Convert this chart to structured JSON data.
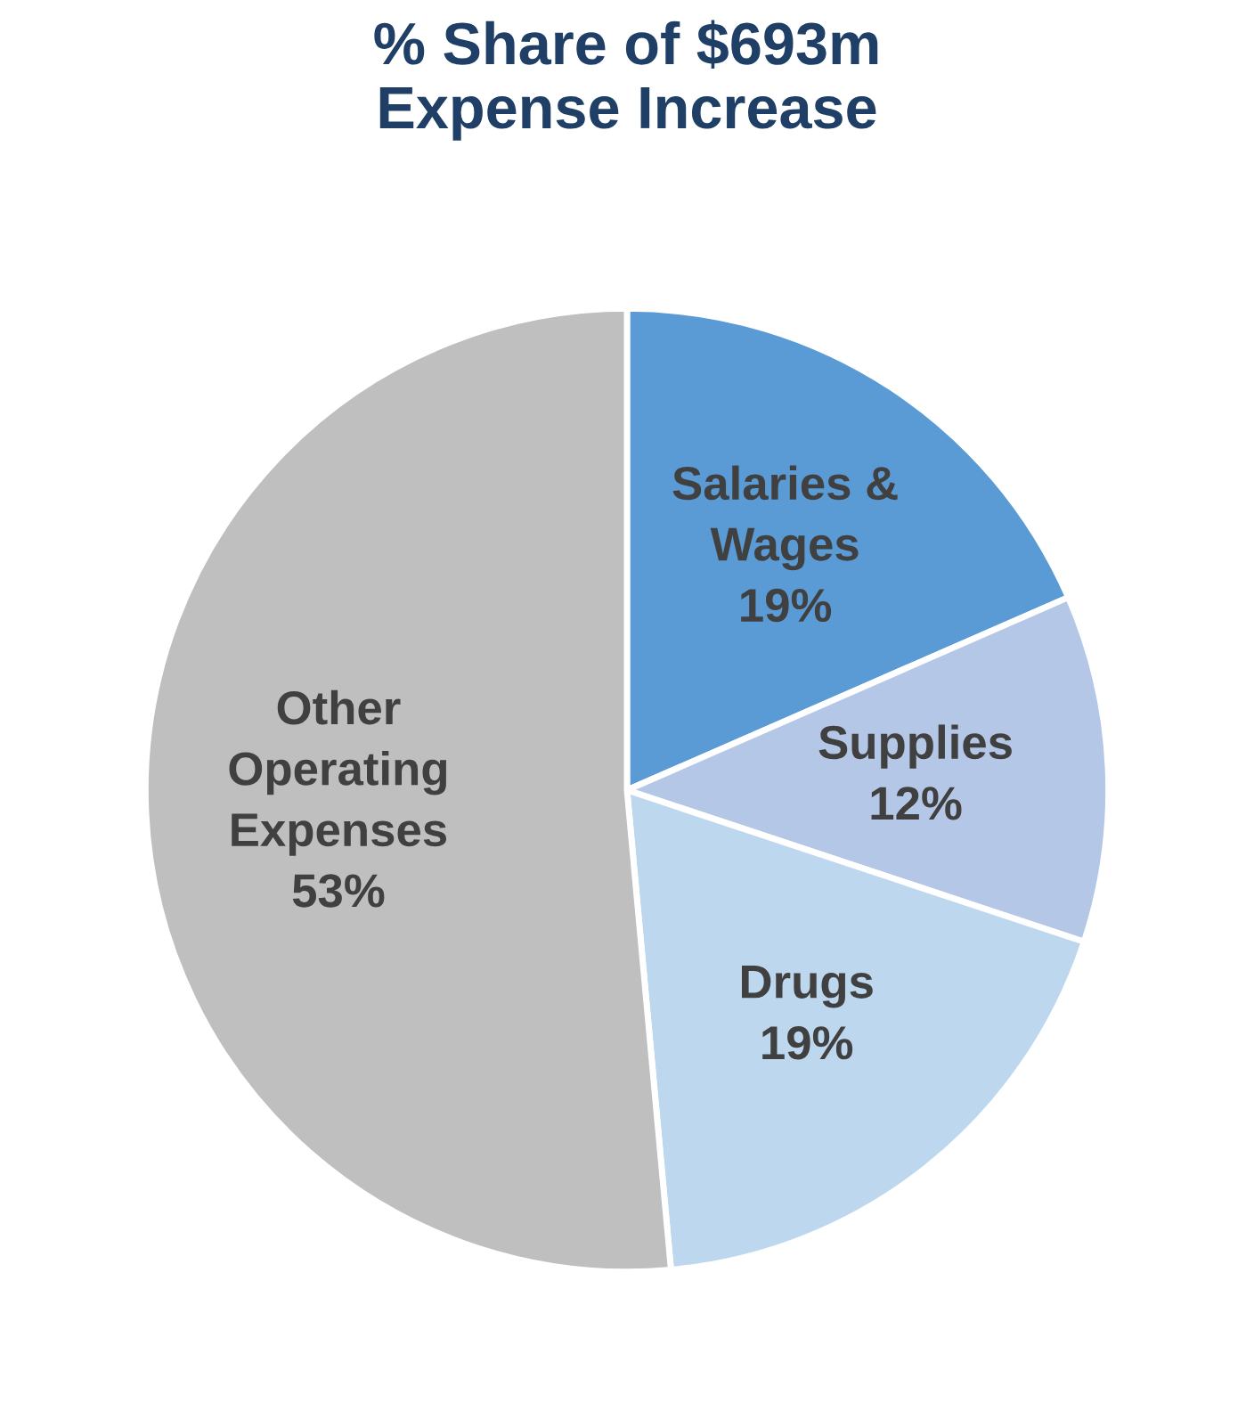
{
  "chart_data": {
    "type": "pie",
    "title": "% Share of $693m\nExpense Increase",
    "categories": [
      "Salaries &\nWages",
      "Supplies",
      "Drugs",
      "Other\nOperating\nExpenses"
    ],
    "values": [
      19,
      12,
      19,
      53
    ],
    "value_labels": [
      "19%",
      "12%",
      "19%",
      "53%"
    ],
    "colors": [
      "#5b9bd5",
      "#b4c7e7",
      "#bdd7ee",
      "#bfbfbf"
    ]
  }
}
